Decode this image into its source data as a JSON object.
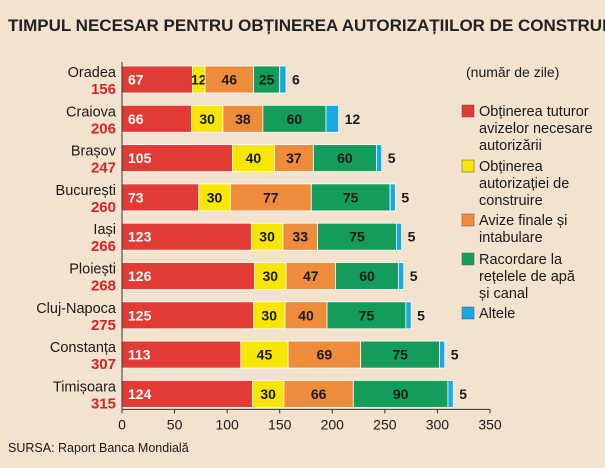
{
  "chart_data": {
    "type": "bar",
    "orientation": "horizontal",
    "stacked": true,
    "title": "TIMPUL NECESAR PENTRU OBȚINEREA AUTORIZAȚIILOR DE CONSTRUIRE",
    "unit_label": "(număr de zile)",
    "source": "SURSA: Raport Banca Mondială",
    "categories": [
      "Oradea",
      "Craiova",
      "Brașov",
      "București",
      "Iași",
      "Ploiești",
      "Cluj-Napoca",
      "Constanța",
      "Timișoara"
    ],
    "totals": [
      156,
      206,
      247,
      260,
      266,
      268,
      275,
      307,
      315
    ],
    "series": [
      {
        "name": [
          "Obținerea tuturor",
          "avizelor necesare",
          "autorizării"
        ],
        "color": "#e23b36",
        "label_color": "#ffffff",
        "values": [
          67,
          66,
          105,
          73,
          123,
          126,
          125,
          113,
          124
        ]
      },
      {
        "name": [
          "Obținerea",
          "autorizației de",
          "construire"
        ],
        "color": "#f7e600",
        "label_color": "#1a1a1a",
        "values": [
          12,
          30,
          40,
          30,
          30,
          30,
          30,
          45,
          30
        ]
      },
      {
        "name": [
          "Avize finale și",
          "intabulare"
        ],
        "color": "#ef8c3c",
        "label_color": "#1a1a1a",
        "values": [
          46,
          38,
          37,
          77,
          33,
          47,
          40,
          69,
          66
        ]
      },
      {
        "name": [
          "Racordare la",
          "rețelele de apă",
          "și canal"
        ],
        "color": "#139c5a",
        "label_color": "#1a1a1a",
        "values": [
          25,
          60,
          60,
          75,
          75,
          60,
          75,
          75,
          90
        ]
      },
      {
        "name": [
          "Altele"
        ],
        "color": "#1aa7e2",
        "label_color": "#1a1a1a",
        "values": [
          6,
          12,
          5,
          5,
          5,
          5,
          5,
          5,
          5
        ]
      }
    ],
    "x_ticks": [
      0,
      50,
      100,
      150,
      200,
      250,
      300,
      350
    ],
    "xlim": [
      0,
      350
    ],
    "grid": false,
    "legend_position": "right"
  }
}
